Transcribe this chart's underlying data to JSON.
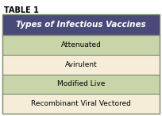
{
  "title": "TABLE 1",
  "header": "Types of Infectious Vaccines",
  "rows": [
    "Attenuated",
    "Avirulent",
    "Modified Live",
    "Recombinant Viral Vectored"
  ],
  "header_bg": "#4a4a7a",
  "row_colors": [
    "#c8d5a8",
    "#f5edd8",
    "#c8d5a8",
    "#f5edd8"
  ],
  "header_text_color": "#ffffff",
  "row_text_color": "#000000",
  "title_color": "#000000",
  "border_color": "#7a8a6a",
  "figsize": [
    2.04,
    1.46
  ],
  "dpi": 100
}
